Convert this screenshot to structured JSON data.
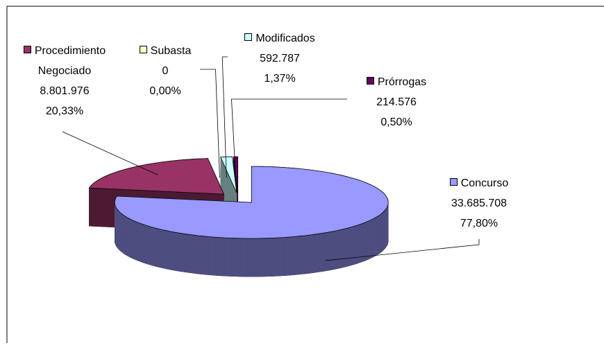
{
  "chart_data": {
    "type": "pie",
    "three_d": true,
    "exploded": true,
    "categories": [
      "Concurso",
      "Procedimiento Negociado",
      "Subasta",
      "Modificados",
      "Prórrogas"
    ],
    "values": [
      33685708,
      8801976,
      0,
      592787,
      214576
    ],
    "value_labels": [
      "33.685.708",
      "8.801.976",
      "0",
      "592.787",
      "214.576"
    ],
    "percents": [
      77.8,
      20.33,
      0,
      1.37,
      0.5
    ],
    "percent_labels": [
      "77,80%",
      "20,33%",
      "0,00%",
      "1,37%",
      "0,50%"
    ],
    "colors": [
      "#9999ff",
      "#993366",
      "#ffffcc",
      "#ccffff",
      "#660066"
    ],
    "side_colors": [
      "#4d4d80",
      "#4d1a33",
      "#80806b",
      "#668080",
      "#330033"
    ]
  }
}
